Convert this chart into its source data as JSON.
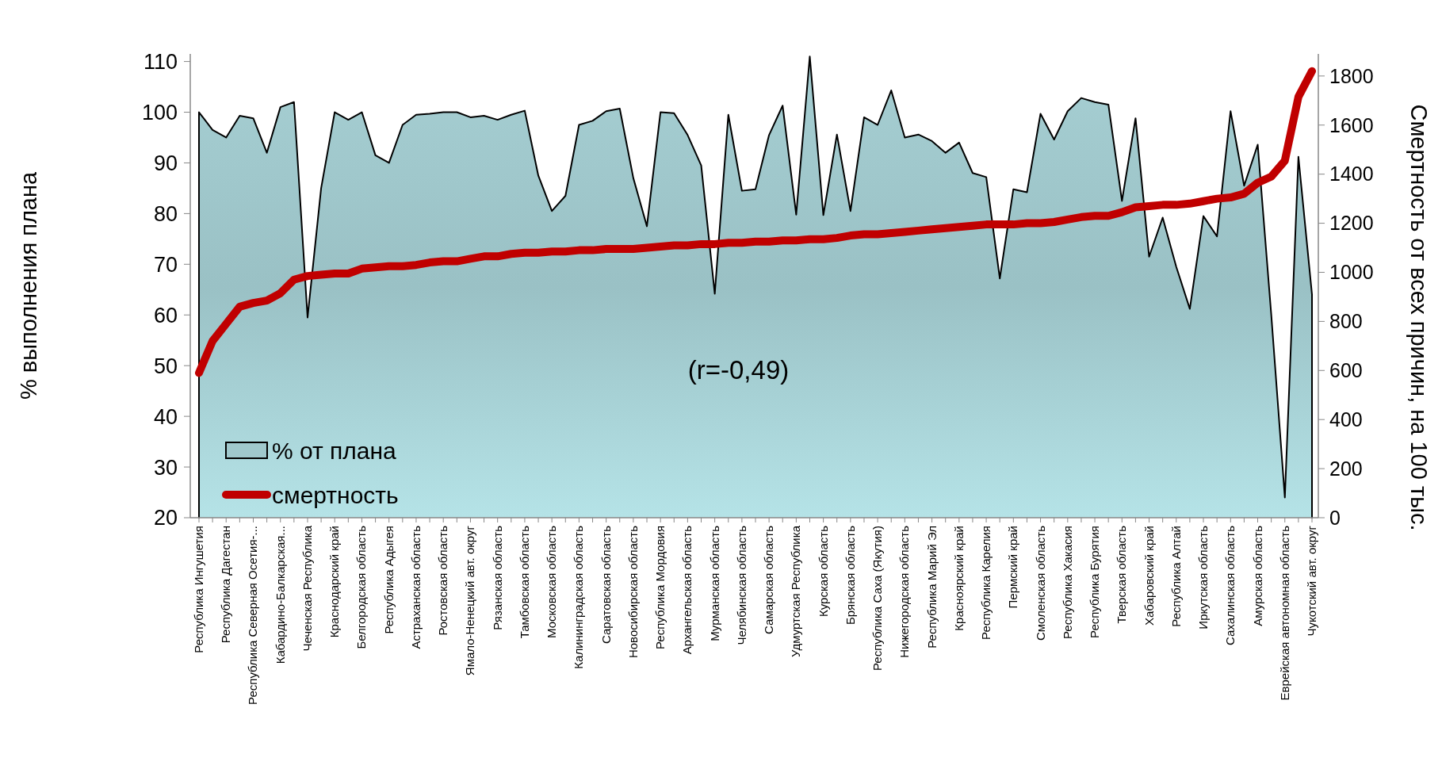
{
  "chart_data": {
    "type": "area",
    "categories": [
      "Республика Ингушетия",
      null,
      "Республика Дагестан",
      null,
      "Республика Северная Осетия-...",
      null,
      "Кабардино-Балкарская...",
      null,
      "Чеченская Республика",
      null,
      "Краснодарский край",
      null,
      "Белгородская область",
      null,
      "Республика Адыгея",
      null,
      "Астраханская область",
      null,
      "Ростовская область",
      null,
      "Ямало-Ненецкий авт. округ",
      null,
      "Рязанская область",
      null,
      "Тамбовская область",
      null,
      "Московская область",
      null,
      "Калининградская область",
      null,
      "Саратовская область",
      null,
      "Новосибирская область",
      null,
      "Республика Мордовия",
      null,
      "Архангельская область",
      null,
      "Мурманская область",
      null,
      "Челябинская область",
      null,
      "Самарская область",
      null,
      "Удмуртская Республика",
      null,
      "Курская область",
      null,
      "Брянская область",
      null,
      "Республика Саха (Якутия)",
      null,
      "Нижегородская область",
      null,
      "Республика Марий Эл",
      null,
      "Красноярский край",
      null,
      "Республика Карелия",
      null,
      "Пермский край",
      null,
      "Смоленская область",
      null,
      "Республика Хакасия",
      null,
      "Республика Бурятия",
      null,
      "Тверская область",
      null,
      "Хабаровский край",
      null,
      "Республика Алтай",
      null,
      "Иркутская область",
      null,
      "Сахалинская область",
      null,
      "Амурская область",
      null,
      "Еврейская автономная область",
      null,
      "Чукотский авт. округ"
    ],
    "series": [
      {
        "name": "% от плана",
        "color": "#a0c8cc",
        "values": [
          100,
          96.5,
          95,
          99.3,
          98.8,
          92,
          101,
          102,
          59.5,
          85,
          100,
          98.5,
          100,
          91.5,
          90,
          97.5,
          99.5,
          99.7,
          100,
          100,
          99,
          99.3,
          98.5,
          99.5,
          100.3,
          87.5,
          80.5,
          83.5,
          97.5,
          98.3,
          100.2,
          100.7,
          87,
          77.5,
          100,
          99.8,
          95.5,
          89.5,
          64.2,
          99.5,
          84.5,
          84.8,
          95.5,
          101.3,
          79.8,
          111,
          79.7,
          95.6,
          80.5,
          99,
          97.5,
          104.3,
          95,
          95.6,
          94.3,
          92,
          94,
          88,
          87.2,
          67.2,
          84.8,
          84.2,
          99.7,
          94.6,
          100.2,
          102.8,
          102,
          101.5,
          82.5,
          98.8,
          71.5,
          79.2,
          69.5,
          61.2,
          79.5,
          75.5,
          100.2,
          85.5,
          93.6,
          60,
          24,
          91.2,
          64
        ]
      },
      {
        "name": "смертность",
        "type": "line",
        "axis": "y2",
        "color": "#c00000",
        "values": [
          590,
          720,
          790,
          860,
          875,
          885,
          915,
          970,
          985,
          990,
          995,
          995,
          1015,
          1020,
          1025,
          1025,
          1030,
          1040,
          1045,
          1045,
          1055,
          1065,
          1065,
          1075,
          1080,
          1080,
          1085,
          1085,
          1090,
          1090,
          1095,
          1095,
          1095,
          1100,
          1105,
          1110,
          1110,
          1115,
          1115,
          1120,
          1120,
          1125,
          1125,
          1130,
          1130,
          1135,
          1135,
          1140,
          1150,
          1155,
          1155,
          1160,
          1165,
          1170,
          1175,
          1180,
          1185,
          1190,
          1195,
          1195,
          1195,
          1200,
          1200,
          1205,
          1215,
          1225,
          1230,
          1230,
          1245,
          1265,
          1270,
          1275,
          1275,
          1280,
          1290,
          1300,
          1305,
          1320,
          1365,
          1390,
          1455,
          1715,
          1820
        ]
      }
    ],
    "ylabel": "% выполнения плана",
    "y2label": "Смертность от всех причин, на 100 тыс.",
    "ylim": [
      20,
      111.5
    ],
    "yticks": [
      20,
      30,
      40,
      50,
      60,
      70,
      80,
      90,
      100,
      110
    ],
    "y2lim": [
      0,
      1890
    ],
    "y2ticks": [
      0,
      200,
      400,
      600,
      800,
      1000,
      1200,
      1400,
      1600,
      1800
    ],
    "annotations": [
      "(r=-0,49)"
    ],
    "legend": "bottom left",
    "grid": false
  }
}
